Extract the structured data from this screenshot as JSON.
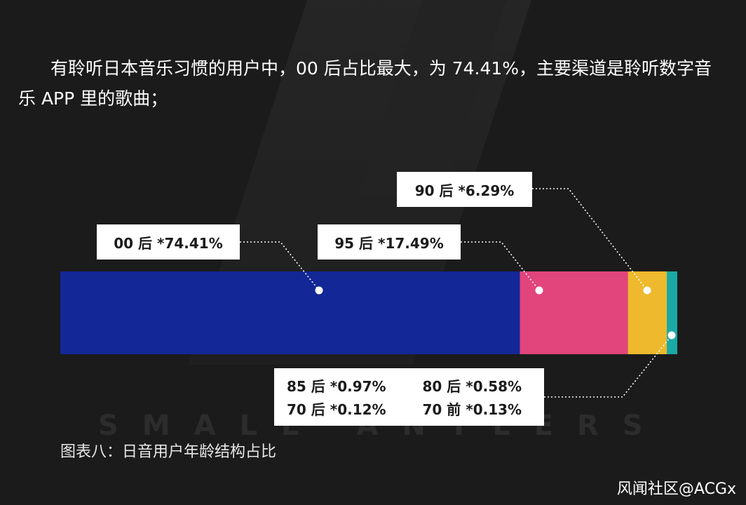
{
  "headline": "有聆听日本音乐习惯的用户中，00 后占比最大，为 74.41%，主要渠道是聆听数字音乐 APP 里的歌曲；",
  "caption": "图表八：日音用户年龄结构占比",
  "watermark": "SMALL ANTLERS",
  "source": "风闻社区@ACGx",
  "colors": {
    "00后": "#132796",
    "95后": "#e1457c",
    "90后": "#eeb92c",
    "85后": "#1aa9a4",
    "background": "#1b1b1b"
  },
  "chart_data": {
    "type": "bar",
    "orientation": "stacked-horizontal",
    "unit": "%",
    "categories": [
      "00 后",
      "95 后",
      "90 后",
      "85 后",
      "80 后",
      "70 后",
      "70 前"
    ],
    "values": [
      74.41,
      17.49,
      6.29,
      0.97,
      0.58,
      0.12,
      0.13
    ],
    "labels": {
      "00": "00 后 *74.41%",
      "95": "95 后 *17.49%",
      "90": "90 后 *6.29%",
      "85": "85 后 *0.97%",
      "80": "80 后 *0.58%",
      "70": "70 后 *0.12%",
      "70q": "70 前 *0.13%"
    }
  }
}
